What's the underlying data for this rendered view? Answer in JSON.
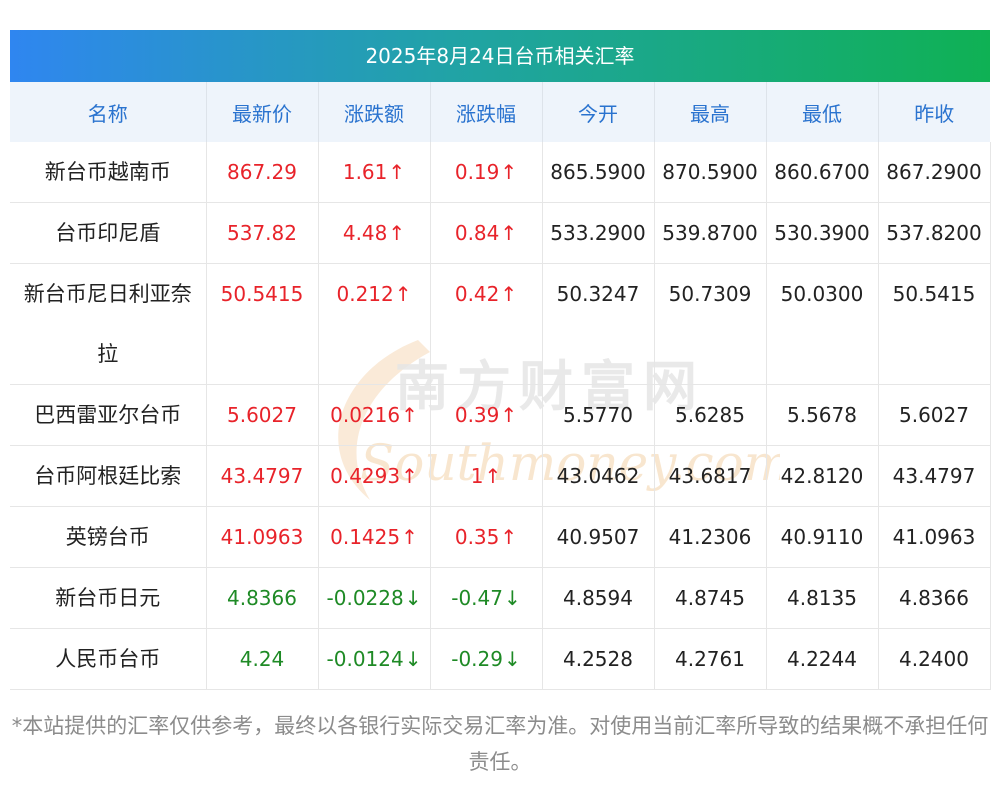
{
  "title": "2025年8月24日台币相关汇率",
  "headers": [
    "名称",
    "最新价",
    "涨跌额",
    "涨跌幅",
    "今开",
    "最高",
    "最低",
    "昨收"
  ],
  "rows": [
    {
      "name": "新台币越南币",
      "latest": "867.29",
      "change": "1.61",
      "pct": "0.19",
      "dir": "up",
      "open": "865.5900",
      "high": "870.5900",
      "low": "860.6700",
      "prev": "867.2900"
    },
    {
      "name": "台币印尼盾",
      "latest": "537.82",
      "change": "4.48",
      "pct": "0.84",
      "dir": "up",
      "open": "533.2900",
      "high": "539.8700",
      "low": "530.3900",
      "prev": "537.8200"
    },
    {
      "name": "新台币尼日利亚奈拉",
      "latest": "50.5415",
      "change": "0.212",
      "pct": "0.42",
      "dir": "up",
      "open": "50.3247",
      "high": "50.7309",
      "low": "50.0300",
      "prev": "50.5415"
    },
    {
      "name": "巴西雷亚尔台币",
      "latest": "5.6027",
      "change": "0.0216",
      "pct": "0.39",
      "dir": "up",
      "open": "5.5770",
      "high": "5.6285",
      "low": "5.5678",
      "prev": "5.6027"
    },
    {
      "name": "台币阿根廷比索",
      "latest": "43.4797",
      "change": "0.4293",
      "pct": "1",
      "dir": "up",
      "open": "43.0462",
      "high": "43.6817",
      "low": "42.8120",
      "prev": "43.4797"
    },
    {
      "name": "英镑台币",
      "latest": "41.0963",
      "change": "0.1425",
      "pct": "0.35",
      "dir": "up",
      "open": "40.9507",
      "high": "41.2306",
      "low": "40.9110",
      "prev": "41.0963"
    },
    {
      "name": "新台币日元",
      "latest": "4.8366",
      "change": "-0.0228",
      "pct": "-0.47",
      "dir": "down",
      "open": "4.8594",
      "high": "4.8745",
      "low": "4.8135",
      "prev": "4.8366"
    },
    {
      "name": "人民币台币",
      "latest": "4.24",
      "change": "-0.0124",
      "pct": "-0.29",
      "dir": "down",
      "open": "4.2528",
      "high": "4.2761",
      "low": "4.2244",
      "prev": "4.2400"
    }
  ],
  "arrows": {
    "up": "↑",
    "down": "↓"
  },
  "watermark": {
    "cn": "南方财富网",
    "en": "Southmoney.com"
  },
  "footnote": "*本站提供的汇率仅供参考，最终以各银行实际交易汇率为准。对使用当前汇率所导致的结果概不承担任何责任。",
  "colors": {
    "up": "#e8232a",
    "down": "#1e8a25",
    "header_text": "#2a73cf",
    "title_start": "#2f86f0",
    "title_end": "#0fb154"
  }
}
